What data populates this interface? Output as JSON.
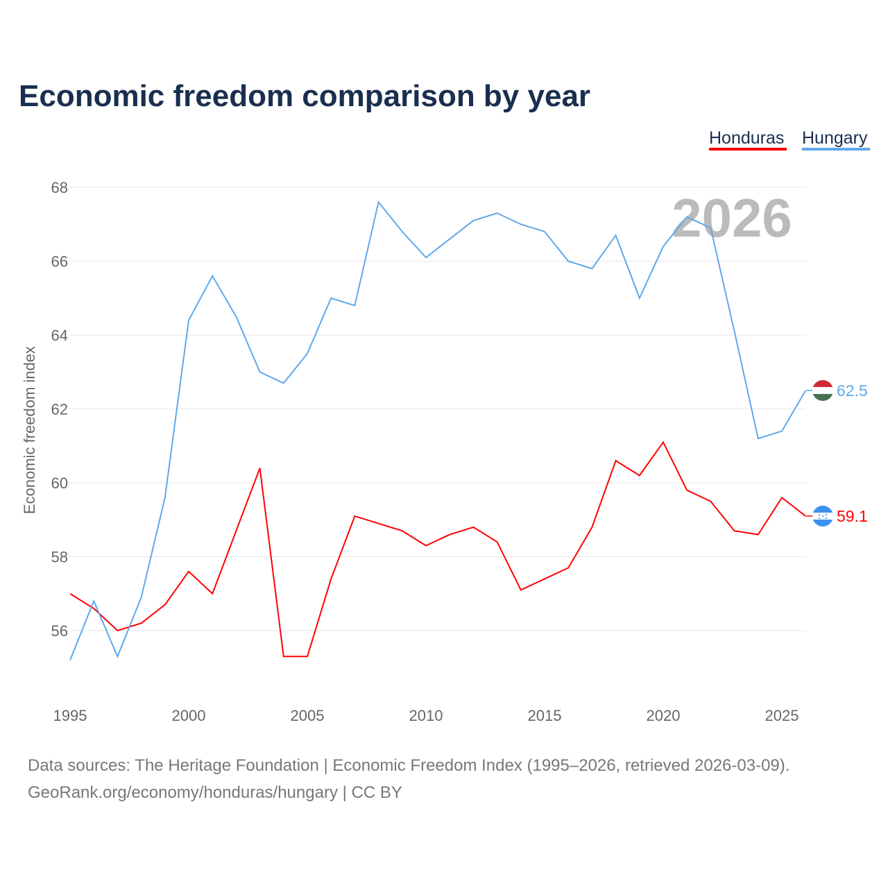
{
  "chart_data": {
    "type": "line",
    "title": "Economic freedom comparison by year",
    "xlabel": "",
    "ylabel": "Economic freedom index",
    "watermark_year": "2026",
    "ylim": [
      54.5,
      68.4
    ],
    "xlim": [
      1995,
      2026
    ],
    "yticks": [
      56,
      58,
      60,
      62,
      64,
      66,
      68
    ],
    "xticks": [
      1995,
      2000,
      2005,
      2010,
      2015,
      2020,
      2025
    ],
    "grid": true,
    "legend_placement": "top-right",
    "x": [
      1995,
      1996,
      1997,
      1998,
      1999,
      2000,
      2001,
      2002,
      2003,
      2004,
      2005,
      2006,
      2007,
      2008,
      2009,
      2010,
      2011,
      2012,
      2013,
      2014,
      2015,
      2016,
      2017,
      2018,
      2019,
      2020,
      2021,
      2022,
      2023,
      2024,
      2025,
      2026
    ],
    "series": [
      {
        "name": "Honduras",
        "color": "#ff0000",
        "end_label": "59.1",
        "values": [
          57.0,
          56.6,
          56.0,
          56.2,
          56.7,
          57.6,
          57.0,
          58.7,
          60.4,
          55.3,
          55.3,
          57.4,
          59.1,
          58.9,
          58.7,
          58.3,
          58.6,
          58.8,
          58.4,
          57.1,
          57.4,
          57.7,
          58.8,
          60.6,
          60.2,
          61.1,
          59.8,
          59.5,
          58.7,
          58.6,
          59.6,
          59.1
        ]
      },
      {
        "name": "Hungary",
        "color": "#5fa8ea",
        "end_label": "62.5",
        "values": [
          55.2,
          56.8,
          55.3,
          56.9,
          59.6,
          64.4,
          65.6,
          64.5,
          63.0,
          62.7,
          63.5,
          65.0,
          64.8,
          67.6,
          66.8,
          66.1,
          66.6,
          67.1,
          67.3,
          67.0,
          66.8,
          66.0,
          65.8,
          66.7,
          65.0,
          66.4,
          67.2,
          66.9,
          64.1,
          61.2,
          61.4,
          62.5
        ]
      }
    ]
  },
  "footer": {
    "line1": "Data sources: The Heritage Foundation | Economic Freedom Index (1995–2026, retrieved 2026-03-09).",
    "line2": "GeoRank.org/economy/honduras/hungary | CC BY"
  }
}
